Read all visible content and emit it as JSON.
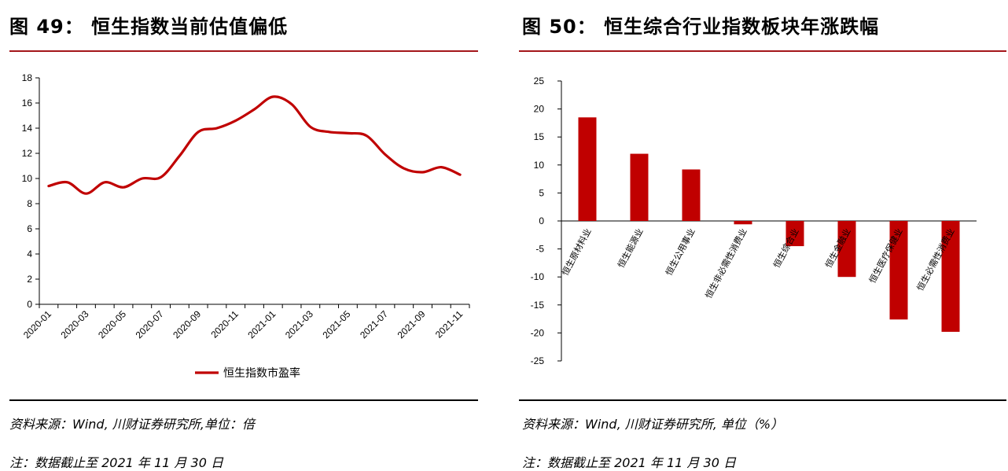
{
  "left": {
    "title": "图 49： 恒生指数当前估值偏低",
    "source": "资料来源：Wind, 川财证券研究所,单位：倍",
    "note": "注：数据截止至 2021 年 11 月 30 日",
    "colors": {
      "line": "#c00000",
      "axis": "#000000"
    }
  },
  "right": {
    "title": "图 50： 恒生综合行业指数板块年涨跌幅",
    "source": "资料来源：Wind, 川财证券研究所, 单位（%）",
    "note": "注：数据截止至 2021 年 11 月 30 日",
    "colors": {
      "bar": "#c00000",
      "axis": "#000000"
    }
  },
  "chart_data": [
    {
      "type": "line",
      "title": "",
      "xlabel": "",
      "ylabel": "",
      "ylim": [
        0,
        18
      ],
      "yticks": [
        0,
        2,
        4,
        6,
        8,
        10,
        12,
        14,
        16,
        18
      ],
      "xticks": [
        "2020-01",
        "2020-03",
        "2020-05",
        "2020-07",
        "2020-09",
        "2020-11",
        "2021-01",
        "2021-03",
        "2021-05",
        "2021-07",
        "2021-09",
        "2021-11"
      ],
      "grid": false,
      "legend": "bottom",
      "series": [
        {
          "name": "恒生指数市盈率",
          "x": [
            "2020-01",
            "2020-02",
            "2020-03",
            "2020-04",
            "2020-05",
            "2020-06",
            "2020-07",
            "2020-08",
            "2020-09",
            "2020-10",
            "2020-11",
            "2020-12",
            "2021-01",
            "2021-02",
            "2021-03",
            "2021-04",
            "2021-05",
            "2021-06",
            "2021-07",
            "2021-08",
            "2021-09",
            "2021-10",
            "2021-11"
          ],
          "values": [
            9.4,
            9.7,
            8.8,
            9.7,
            9.3,
            10.0,
            10.1,
            11.8,
            13.7,
            14.0,
            14.6,
            15.5,
            16.5,
            15.9,
            14.1,
            13.7,
            13.6,
            13.4,
            11.9,
            10.8,
            10.5,
            10.9,
            10.3
          ]
        }
      ]
    },
    {
      "type": "bar",
      "title": "",
      "xlabel": "",
      "ylabel": "",
      "ylim": [
        -25,
        25
      ],
      "yticks": [
        -25,
        -20,
        -15,
        -10,
        -5,
        0,
        5,
        10,
        15,
        20,
        25
      ],
      "grid": false,
      "categories": [
        "恒生原材料业",
        "恒生能源业",
        "恒生公用事业",
        "恒生非必需性消费业",
        "恒生综合业",
        "恒生金融业",
        "恒生医疗保健业",
        "恒生必需性消费业"
      ],
      "values": [
        18.5,
        12.0,
        9.2,
        -0.6,
        -4.5,
        -10.0,
        -17.6,
        -19.8
      ]
    }
  ]
}
